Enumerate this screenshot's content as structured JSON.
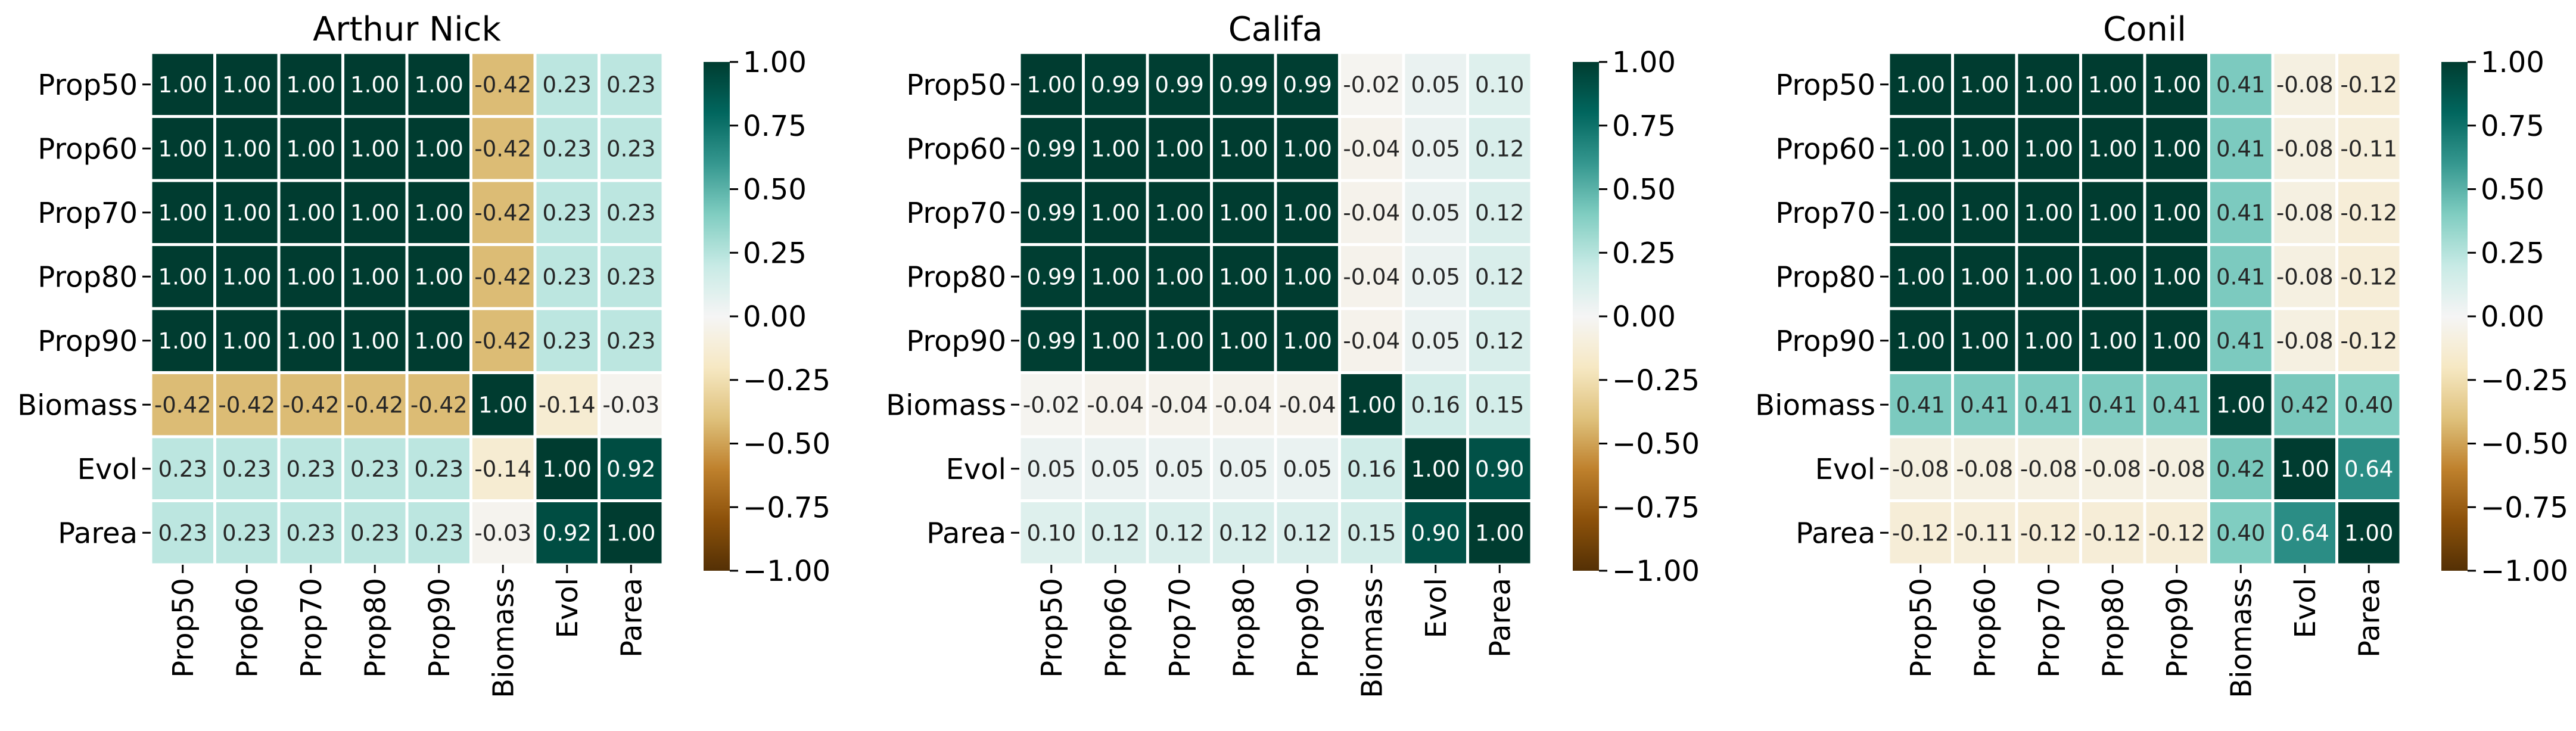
{
  "chart_data": [
    {
      "type": "heatmap",
      "title": "Arthur Nick",
      "row_labels": [
        "Prop50",
        "Prop60",
        "Prop70",
        "Prop80",
        "Prop90",
        "Biomass",
        "Evol",
        "Parea"
      ],
      "col_labels": [
        "Prop50",
        "Prop60",
        "Prop70",
        "Prop80",
        "Prop90",
        "Biomass",
        "Evol",
        "Parea"
      ],
      "values": [
        [
          1.0,
          1.0,
          1.0,
          1.0,
          1.0,
          -0.42,
          0.23,
          0.23
        ],
        [
          1.0,
          1.0,
          1.0,
          1.0,
          1.0,
          -0.42,
          0.23,
          0.23
        ],
        [
          1.0,
          1.0,
          1.0,
          1.0,
          1.0,
          -0.42,
          0.23,
          0.23
        ],
        [
          1.0,
          1.0,
          1.0,
          1.0,
          1.0,
          -0.42,
          0.23,
          0.23
        ],
        [
          1.0,
          1.0,
          1.0,
          1.0,
          1.0,
          -0.42,
          0.23,
          0.23
        ],
        [
          -0.42,
          -0.42,
          -0.42,
          -0.42,
          -0.42,
          1.0,
          -0.14,
          -0.03
        ],
        [
          0.23,
          0.23,
          0.23,
          0.23,
          0.23,
          -0.14,
          1.0,
          0.92
        ],
        [
          0.23,
          0.23,
          0.23,
          0.23,
          0.23,
          -0.03,
          0.92,
          1.0
        ]
      ],
      "value_labels": [
        [
          "1.00",
          "1.00",
          "1.00",
          "1.00",
          "1.00",
          "-0.42",
          "0.23",
          "0.23"
        ],
        [
          "1.00",
          "1.00",
          "1.00",
          "1.00",
          "1.00",
          "-0.42",
          "0.23",
          "0.23"
        ],
        [
          "1.00",
          "1.00",
          "1.00",
          "1.00",
          "1.00",
          "-0.42",
          "0.23",
          "0.23"
        ],
        [
          "1.00",
          "1.00",
          "1.00",
          "1.00",
          "1.00",
          "-0.42",
          "0.23",
          "0.23"
        ],
        [
          "1.00",
          "1.00",
          "1.00",
          "1.00",
          "1.00",
          "-0.42",
          "0.23",
          "0.23"
        ],
        [
          "-0.42",
          "-0.42",
          "-0.42",
          "-0.42",
          "-0.42",
          "1.00",
          "-0.14",
          "-0.03"
        ],
        [
          "0.23",
          "0.23",
          "0.23",
          "0.23",
          "0.23",
          "-0.14",
          "1.00",
          "0.92"
        ],
        [
          "0.23",
          "0.23",
          "0.23",
          "0.23",
          "0.23",
          "-0.03",
          "0.92",
          "1.00"
        ]
      ],
      "colorbar": {
        "range": [
          -1.0,
          1.0
        ],
        "ticks": [
          1.0,
          0.75,
          0.5,
          0.25,
          0.0,
          -0.25,
          -0.5,
          -0.75,
          -1.0
        ],
        "tick_labels": [
          "1.00",
          "0.75",
          "0.50",
          "0.25",
          "0.00",
          "−0.25",
          "−0.50",
          "−0.75",
          "−1.00"
        ]
      }
    },
    {
      "type": "heatmap",
      "title": "Califa",
      "row_labels": [
        "Prop50",
        "Prop60",
        "Prop70",
        "Prop80",
        "Prop90",
        "Biomass",
        "Evol",
        "Parea"
      ],
      "col_labels": [
        "Prop50",
        "Prop60",
        "Prop70",
        "Prop80",
        "Prop90",
        "Biomass",
        "Evol",
        "Parea"
      ],
      "values": [
        [
          1.0,
          0.99,
          0.99,
          0.99,
          0.99,
          -0.02,
          0.05,
          0.1
        ],
        [
          0.99,
          1.0,
          1.0,
          1.0,
          1.0,
          -0.04,
          0.05,
          0.12
        ],
        [
          0.99,
          1.0,
          1.0,
          1.0,
          1.0,
          -0.04,
          0.05,
          0.12
        ],
        [
          0.99,
          1.0,
          1.0,
          1.0,
          1.0,
          -0.04,
          0.05,
          0.12
        ],
        [
          0.99,
          1.0,
          1.0,
          1.0,
          1.0,
          -0.04,
          0.05,
          0.12
        ],
        [
          -0.02,
          -0.04,
          -0.04,
          -0.04,
          -0.04,
          1.0,
          0.16,
          0.15
        ],
        [
          0.05,
          0.05,
          0.05,
          0.05,
          0.05,
          0.16,
          1.0,
          0.9
        ],
        [
          0.1,
          0.12,
          0.12,
          0.12,
          0.12,
          0.15,
          0.9,
          1.0
        ]
      ],
      "value_labels": [
        [
          "1.00",
          "0.99",
          "0.99",
          "0.99",
          "0.99",
          "-0.02",
          "0.05",
          "0.10"
        ],
        [
          "0.99",
          "1.00",
          "1.00",
          "1.00",
          "1.00",
          "-0.04",
          "0.05",
          "0.12"
        ],
        [
          "0.99",
          "1.00",
          "1.00",
          "1.00",
          "1.00",
          "-0.04",
          "0.05",
          "0.12"
        ],
        [
          "0.99",
          "1.00",
          "1.00",
          "1.00",
          "1.00",
          "-0.04",
          "0.05",
          "0.12"
        ],
        [
          "0.99",
          "1.00",
          "1.00",
          "1.00",
          "1.00",
          "-0.04",
          "0.05",
          "0.12"
        ],
        [
          "-0.02",
          "-0.04",
          "-0.04",
          "-0.04",
          "-0.04",
          "1.00",
          "0.16",
          "0.15"
        ],
        [
          "0.05",
          "0.05",
          "0.05",
          "0.05",
          "0.05",
          "0.16",
          "1.00",
          "0.90"
        ],
        [
          "0.10",
          "0.12",
          "0.12",
          "0.12",
          "0.12",
          "0.15",
          "0.90",
          "1.00"
        ]
      ],
      "colorbar": {
        "range": [
          -1.0,
          1.0
        ],
        "ticks": [
          1.0,
          0.75,
          0.5,
          0.25,
          0.0,
          -0.25,
          -0.5,
          -0.75,
          -1.0
        ],
        "tick_labels": [
          "1.00",
          "0.75",
          "0.50",
          "0.25",
          "0.00",
          "−0.25",
          "−0.50",
          "−0.75",
          "−1.00"
        ]
      }
    },
    {
      "type": "heatmap",
      "title": "Conil",
      "row_labels": [
        "Prop50",
        "Prop60",
        "Prop70",
        "Prop80",
        "Prop90",
        "Biomass",
        "Evol",
        "Parea"
      ],
      "col_labels": [
        "Prop50",
        "Prop60",
        "Prop70",
        "Prop80",
        "Prop90",
        "Biomass",
        "Evol",
        "Parea"
      ],
      "values": [
        [
          1.0,
          1.0,
          1.0,
          1.0,
          1.0,
          0.41,
          -0.08,
          -0.12
        ],
        [
          1.0,
          1.0,
          1.0,
          1.0,
          1.0,
          0.41,
          -0.08,
          -0.11
        ],
        [
          1.0,
          1.0,
          1.0,
          1.0,
          1.0,
          0.41,
          -0.08,
          -0.12
        ],
        [
          1.0,
          1.0,
          1.0,
          1.0,
          1.0,
          0.41,
          -0.08,
          -0.12
        ],
        [
          1.0,
          1.0,
          1.0,
          1.0,
          1.0,
          0.41,
          -0.08,
          -0.12
        ],
        [
          0.41,
          0.41,
          0.41,
          0.41,
          0.41,
          1.0,
          0.42,
          0.4
        ],
        [
          -0.08,
          -0.08,
          -0.08,
          -0.08,
          -0.08,
          0.42,
          1.0,
          0.64
        ],
        [
          -0.12,
          -0.11,
          -0.12,
          -0.12,
          -0.12,
          0.4,
          0.64,
          1.0
        ]
      ],
      "value_labels": [
        [
          "1.00",
          "1.00",
          "1.00",
          "1.00",
          "1.00",
          "0.41",
          "-0.08",
          "-0.12"
        ],
        [
          "1.00",
          "1.00",
          "1.00",
          "1.00",
          "1.00",
          "0.41",
          "-0.08",
          "-0.11"
        ],
        [
          "1.00",
          "1.00",
          "1.00",
          "1.00",
          "1.00",
          "0.41",
          "-0.08",
          "-0.12"
        ],
        [
          "1.00",
          "1.00",
          "1.00",
          "1.00",
          "1.00",
          "0.41",
          "-0.08",
          "-0.12"
        ],
        [
          "1.00",
          "1.00",
          "1.00",
          "1.00",
          "1.00",
          "0.41",
          "-0.08",
          "-0.12"
        ],
        [
          "0.41",
          "0.41",
          "0.41",
          "0.41",
          "0.41",
          "1.00",
          "0.42",
          "0.40"
        ],
        [
          "-0.08",
          "-0.08",
          "-0.08",
          "-0.08",
          "-0.08",
          "0.42",
          "1.00",
          "0.64"
        ],
        [
          "-0.12",
          "-0.11",
          "-0.12",
          "-0.12",
          "-0.12",
          "0.40",
          "0.64",
          "1.00"
        ]
      ],
      "colorbar": {
        "range": [
          -1.0,
          1.0
        ],
        "ticks": [
          1.0,
          0.75,
          0.5,
          0.25,
          0.0,
          -0.25,
          -0.5,
          -0.75,
          -1.0
        ],
        "tick_labels": [
          "1.00",
          "0.75",
          "0.50",
          "0.25",
          "0.00",
          "−0.25",
          "−0.50",
          "−0.75",
          "−1.00"
        ]
      }
    }
  ],
  "colormap": {
    "name": "BrBG",
    "stops": [
      "#543005",
      "#8c510a",
      "#bf812d",
      "#dfc27d",
      "#f6e8c3",
      "#f5f5f5",
      "#c7eae5",
      "#80cdc1",
      "#35978f",
      "#01665e",
      "#003c30"
    ]
  }
}
